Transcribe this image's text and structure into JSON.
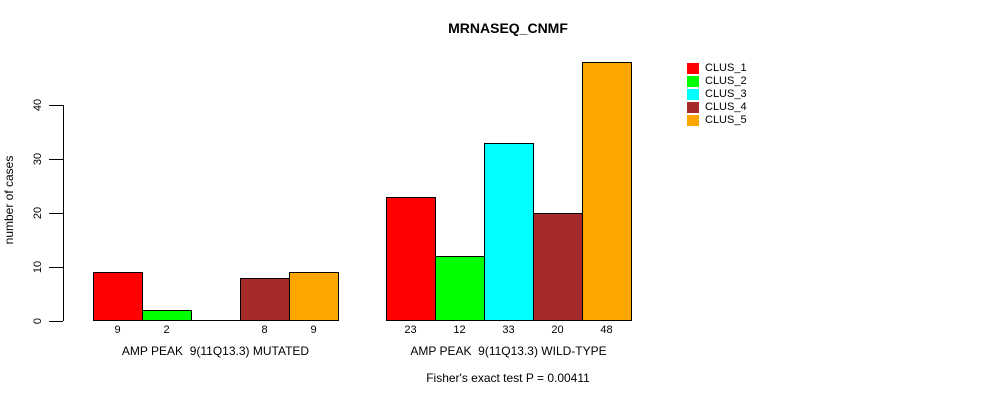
{
  "chart_data": {
    "type": "bar",
    "title": "MRNASEQ_CNMF",
    "ylabel": "number of cases",
    "xlabel": "",
    "ylim": [
      0,
      40
    ],
    "yticks": [
      0,
      10,
      20,
      30,
      40
    ],
    "grid": false,
    "legend_position": "right-inside",
    "bar_value_labels_shown": true,
    "categories": [
      "AMP PEAK  9(11Q13.3) MUTATED",
      "AMP PEAK  9(11Q13.3) WILD-TYPE"
    ],
    "series": [
      {
        "name": "CLUS_1",
        "color": "#FF0000",
        "values": [
          9,
          23
        ]
      },
      {
        "name": "CLUS_2",
        "color": "#00FF00",
        "values": [
          2,
          12
        ]
      },
      {
        "name": "CLUS_3",
        "color": "#00FFFF",
        "values": [
          0,
          33
        ]
      },
      {
        "name": "CLUS_4",
        "color": "#A52A2A",
        "values": [
          8,
          20
        ]
      },
      {
        "name": "CLUS_5",
        "color": "#FFA500",
        "values": [
          9,
          48
        ]
      }
    ],
    "note": "Fisher's exact test P = 0.00411",
    "colors": {
      "background": "#FFFFFF",
      "axis": "#000000",
      "bar_border": "#000000",
      "text": "#000000"
    }
  }
}
